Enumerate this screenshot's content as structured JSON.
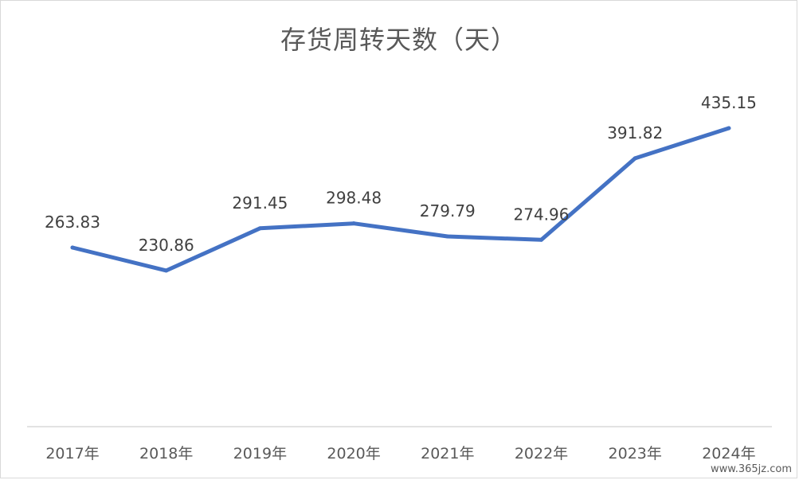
{
  "chart_data": {
    "type": "line",
    "title": "存货周转天数（天）",
    "categories": [
      "2017年",
      "2018年",
      "2019年",
      "2020年",
      "2021年",
      "2022年",
      "2023年",
      "2024年"
    ],
    "series": [
      {
        "values": [
          263.83,
          230.86,
          291.45,
          298.48,
          279.79,
          274.96,
          391.82,
          435.15
        ],
        "labels": [
          "263.83",
          "230.86",
          "291.45",
          "298.48",
          "279.79",
          "274.96",
          "391.82",
          "435.15"
        ]
      }
    ],
    "line_color": "#4472C4",
    "grid": false,
    "legend": "none"
  },
  "watermark": "www.365jz.com"
}
